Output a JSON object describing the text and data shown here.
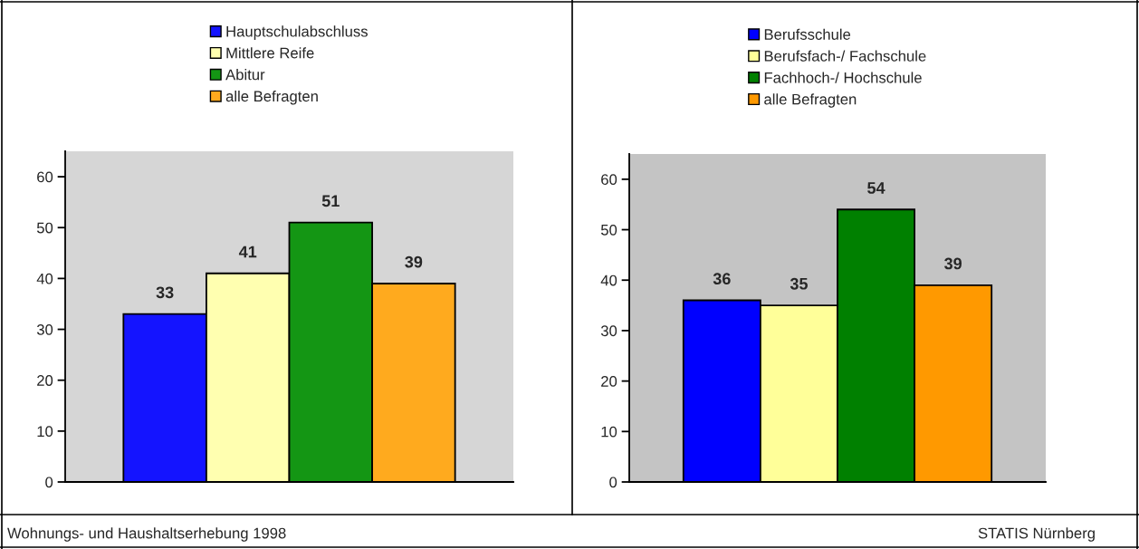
{
  "chart_data": [
    {
      "type": "bar",
      "categories": [
        null
      ],
      "series": [
        {
          "name": "Hauptschulabschluss",
          "color": "#1414ff",
          "values": [
            33
          ]
        },
        {
          "name": "Mittlere Reife",
          "color": "#ffffb0",
          "values": [
            41
          ]
        },
        {
          "name": "Abitur",
          "color": "#149614",
          "values": [
            51
          ]
        },
        {
          "name": "alle Befragten",
          "color": "#ffaa1e",
          "values": [
            39
          ]
        }
      ],
      "ylim": [
        0,
        65
      ],
      "yticks": [
        0,
        10,
        20,
        30,
        40,
        50,
        60
      ],
      "data_labels": true,
      "legend": "top",
      "grid": false,
      "annotations": [
        "Wohnungs- und Haushaltserhebung 1998"
      ]
    },
    {
      "type": "bar",
      "categories": [
        null
      ],
      "series": [
        {
          "name": "Berufsschule",
          "color": "#0000ff",
          "values": [
            36
          ]
        },
        {
          "name": "Berufsfach-/ Fachschule",
          "color": "#ffff99",
          "values": [
            35
          ]
        },
        {
          "name": "Fachhoch-/ Hochschule",
          "color": "#008000",
          "values": [
            54
          ]
        },
        {
          "name": "alle Befragten",
          "color": "#ff9900",
          "values": [
            39
          ]
        }
      ],
      "ylim": [
        0,
        65
      ],
      "yticks": [
        0,
        10,
        20,
        30,
        40,
        50,
        60
      ],
      "data_labels": true,
      "legend": "top",
      "grid": false,
      "annotations": [
        "STATIS Nürnberg"
      ]
    }
  ]
}
